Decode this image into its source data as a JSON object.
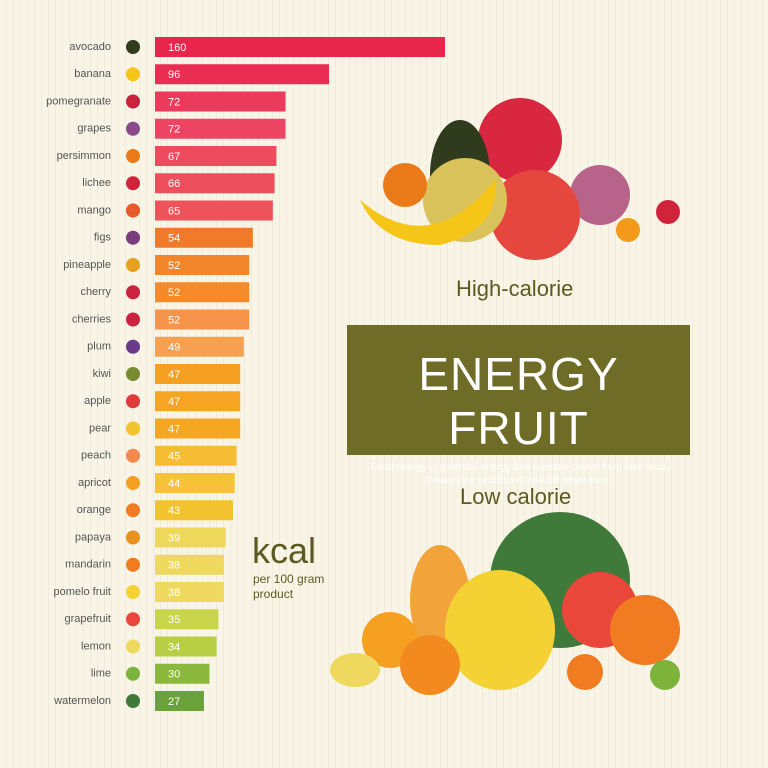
{
  "chart_data": {
    "type": "bar",
    "orientation": "horizontal",
    "title": "ENERGY FRUIT",
    "description": "Food energy is potential energy that humans derive from their food through the process of cellular respiration.",
    "high_label": "High-calorie",
    "low_label": "Low calorie",
    "unit": "kcal",
    "unit_note": "per 100 gram product",
    "categories": [
      "avocado",
      "banana",
      "pomegranate",
      "grapes",
      "persimmon",
      "lichee",
      "mango",
      "figs",
      "pineapple",
      "cherry",
      "cherries",
      "plum",
      "kiwi",
      "apple",
      "pear",
      "peach",
      "apricot",
      "orange",
      "papaya",
      "mandarin",
      "pomelo fruit",
      "grapefruit",
      "lemon",
      "lime",
      "watermelon"
    ],
    "values": [
      160,
      96,
      72,
      72,
      67,
      66,
      65,
      54,
      52,
      52,
      52,
      49,
      47,
      47,
      47,
      45,
      44,
      43,
      39,
      38,
      38,
      35,
      34,
      30,
      27
    ],
    "colors": [
      "#e8254a",
      "#ea2d52",
      "#ec3a5c",
      "#ee4464",
      "#ee4c5e",
      "#ee4f5d",
      "#ee525a",
      "#f07a2a",
      "#f3852a",
      "#f58a2a",
      "#f6944c",
      "#f7a050",
      "#f5a020",
      "#f6a421",
      "#f5a623",
      "#f6bd34",
      "#f6c23a",
      "#f2c32f",
      "#eed85a",
      "#eed85e",
      "#eed85e",
      "#c8d54a",
      "#b8cf45",
      "#8ab83c",
      "#6aa23a"
    ],
    "xlim": [
      0,
      160
    ]
  }
}
